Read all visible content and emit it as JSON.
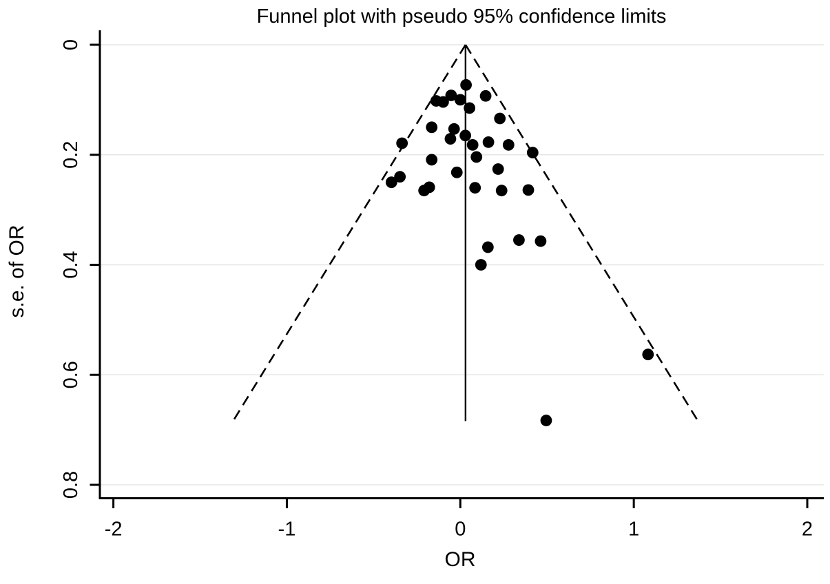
{
  "figure": {
    "title": "Funnel plot with pseudo 95% confidence limits",
    "x_axis_label": "OR",
    "y_axis_label": "s.e. of OR"
  },
  "chart_data": {
    "type": "scatter",
    "subtype": "funnel-plot",
    "title": "Funnel plot with pseudo 95% confidence limits",
    "xlabel": "OR",
    "ylabel": "s.e. of OR",
    "xlim": [
      -2.08,
      2.08
    ],
    "ylim": [
      0,
      0.825
    ],
    "y_axis_reversed": true,
    "grid": "horizontal",
    "legend": "none",
    "x_ticks": [
      -2,
      -1,
      0,
      1,
      2
    ],
    "x_tick_labels": [
      "-2",
      "-1",
      "0",
      "1",
      "2"
    ],
    "y_ticks": [
      0,
      0.2,
      0.4,
      0.6,
      0.8
    ],
    "y_tick_labels": [
      "0",
      "0.2",
      "0.4",
      "0.6",
      "0.8"
    ],
    "pooled_or": 0.03,
    "max_se": 0.684,
    "ci_multiplier": 1.96,
    "center_line": {
      "style": "solid",
      "or": 0.03,
      "se_from": 0,
      "se_to": 0.684
    },
    "funnel_lines": {
      "style": "dashed",
      "apex": {
        "or": 0.03,
        "se": 0
      },
      "left_end": {
        "or": -1.31,
        "se": 0.684
      },
      "right_end": {
        "or": 1.37,
        "se": 0.684
      }
    },
    "points": [
      {
        "or": 0.033,
        "se": 0.073
      },
      {
        "or": -0.139,
        "se": 0.102
      },
      {
        "or": -0.099,
        "se": 0.104
      },
      {
        "or": -0.053,
        "se": 0.092
      },
      {
        "or": 0.0,
        "se": 0.1
      },
      {
        "or": 0.053,
        "se": 0.115
      },
      {
        "or": 0.146,
        "se": 0.093
      },
      {
        "or": 0.228,
        "se": 0.134
      },
      {
        "or": -0.165,
        "se": 0.15
      },
      {
        "or": -0.036,
        "se": 0.153
      },
      {
        "or": -0.057,
        "se": 0.171
      },
      {
        "or": 0.029,
        "se": 0.165
      },
      {
        "or": -0.336,
        "se": 0.179
      },
      {
        "or": 0.071,
        "se": 0.182
      },
      {
        "or": 0.162,
        "se": 0.177
      },
      {
        "or": 0.278,
        "se": 0.182
      },
      {
        "or": 0.417,
        "se": 0.196
      },
      {
        "or": 0.093,
        "se": 0.204
      },
      {
        "or": -0.165,
        "se": 0.209
      },
      {
        "or": -0.02,
        "se": 0.232
      },
      {
        "or": 0.218,
        "se": 0.226
      },
      {
        "or": -0.348,
        "se": 0.24
      },
      {
        "or": -0.397,
        "se": 0.25
      },
      {
        "or": -0.179,
        "se": 0.259
      },
      {
        "or": -0.209,
        "se": 0.265
      },
      {
        "or": 0.085,
        "se": 0.26
      },
      {
        "or": 0.238,
        "se": 0.265
      },
      {
        "or": 0.392,
        "se": 0.264
      },
      {
        "or": 0.159,
        "se": 0.368
      },
      {
        "or": 0.338,
        "se": 0.355
      },
      {
        "or": 0.463,
        "se": 0.357
      },
      {
        "or": 0.119,
        "se": 0.4
      },
      {
        "or": 1.082,
        "se": 0.563
      },
      {
        "or": 0.495,
        "se": 0.683
      }
    ],
    "colors": {
      "points": "#000000",
      "lines": "#000000",
      "grid": "#e6e6e6",
      "text": "#000000",
      "background": "#ffffff"
    }
  }
}
